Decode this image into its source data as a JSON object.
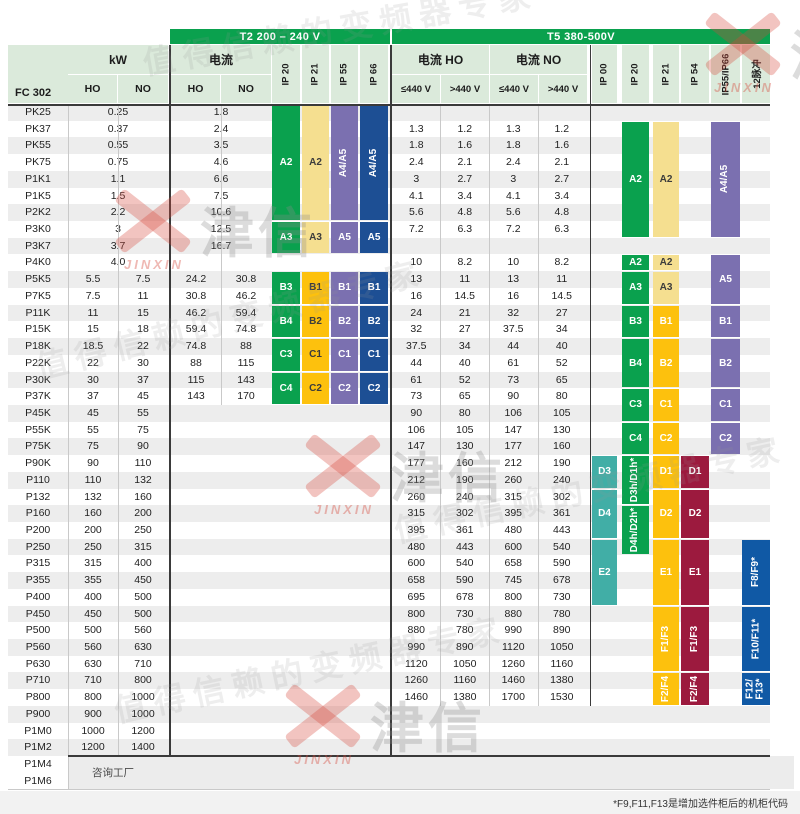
{
  "bars": {
    "t2": "T2 200 – 240 V",
    "t5": "T5 380-500V"
  },
  "header": {
    "model": "FC 302",
    "kw": {
      "label": "kW",
      "sub": [
        "HO",
        "NO"
      ]
    },
    "t2_current": {
      "label": "电流",
      "sub": [
        "HO",
        "NO"
      ]
    },
    "t2_ip": [
      "IP 20",
      "IP 21",
      "IP 55",
      "IP 66"
    ],
    "t5_current_ho": {
      "label": "电流 HO",
      "sub": [
        "≤440 V",
        ">440 V"
      ]
    },
    "t5_current_no": {
      "label": "电流 NO",
      "sub": [
        "≤440 V",
        ">440 V"
      ]
    },
    "t5_ip": [
      "IP 00",
      "IP 20",
      "IP 21",
      "IP 54",
      "IP55/IP66",
      "12脉冲"
    ]
  },
  "rows": [
    {
      "m": "PK25",
      "k": [
        "0.25"
      ],
      "c": [
        "1.8"
      ],
      "t": []
    },
    {
      "m": "PK37",
      "k": [
        "0.37"
      ],
      "c": [
        "2.4"
      ],
      "t": [
        "1.3",
        "1.2",
        "1.3",
        "1.2"
      ]
    },
    {
      "m": "PK55",
      "k": [
        "0.55"
      ],
      "c": [
        "3.5"
      ],
      "t": [
        "1.8",
        "1.6",
        "1.8",
        "1.6"
      ]
    },
    {
      "m": "PK75",
      "k": [
        "0.75"
      ],
      "c": [
        "4.6"
      ],
      "t": [
        "2.4",
        "2.1",
        "2.4",
        "2.1"
      ]
    },
    {
      "m": "P1K1",
      "k": [
        "1.1"
      ],
      "c": [
        "6.6"
      ],
      "t": [
        "3",
        "2.7",
        "3",
        "2.7"
      ]
    },
    {
      "m": "P1K5",
      "k": [
        "1.5"
      ],
      "c": [
        "7.5"
      ],
      "t": [
        "4.1",
        "3.4",
        "4.1",
        "3.4"
      ]
    },
    {
      "m": "P2K2",
      "k": [
        "2.2"
      ],
      "c": [
        "10.6"
      ],
      "t": [
        "5.6",
        "4.8",
        "5.6",
        "4.8"
      ]
    },
    {
      "m": "P3K0",
      "k": [
        "3"
      ],
      "c": [
        "12.5"
      ],
      "t": [
        "7.2",
        "6.3",
        "7.2",
        "6.3"
      ]
    },
    {
      "m": "P3K7",
      "k": [
        "3.7"
      ],
      "c": [
        "16.7"
      ],
      "t": []
    },
    {
      "m": "P4K0",
      "k": [
        "4.0"
      ],
      "c": [],
      "t": [
        "10",
        "8.2",
        "10",
        "8.2"
      ]
    },
    {
      "m": "P5K5",
      "k": [
        "5.5",
        "7.5"
      ],
      "c": [
        "24.2",
        "30.8"
      ],
      "t": [
        "13",
        "11",
        "13",
        "11"
      ]
    },
    {
      "m": "P7K5",
      "k": [
        "7.5",
        "11"
      ],
      "c": [
        "30.8",
        "46.2"
      ],
      "t": [
        "16",
        "14.5",
        "16",
        "14.5"
      ]
    },
    {
      "m": "P11K",
      "k": [
        "11",
        "15"
      ],
      "c": [
        "46.2",
        "59.4"
      ],
      "t": [
        "24",
        "21",
        "32",
        "27"
      ]
    },
    {
      "m": "P15K",
      "k": [
        "15",
        "18"
      ],
      "c": [
        "59.4",
        "74.8"
      ],
      "t": [
        "32",
        "27",
        "37.5",
        "34"
      ]
    },
    {
      "m": "P18K",
      "k": [
        "18.5",
        "22"
      ],
      "c": [
        "74.8",
        "88"
      ],
      "t": [
        "37.5",
        "34",
        "44",
        "40"
      ]
    },
    {
      "m": "P22K",
      "k": [
        "22",
        "30"
      ],
      "c": [
        "88",
        "115"
      ],
      "t": [
        "44",
        "40",
        "61",
        "52"
      ]
    },
    {
      "m": "P30K",
      "k": [
        "30",
        "37"
      ],
      "c": [
        "115",
        "143"
      ],
      "t": [
        "61",
        "52",
        "73",
        "65"
      ]
    },
    {
      "m": "P37K",
      "k": [
        "37",
        "45"
      ],
      "c": [
        "143",
        "170"
      ],
      "t": [
        "73",
        "65",
        "90",
        "80"
      ]
    },
    {
      "m": "P45K",
      "k": [
        "45",
        "55"
      ],
      "c": [],
      "t": [
        "90",
        "80",
        "106",
        "105"
      ]
    },
    {
      "m": "P55K",
      "k": [
        "55",
        "75"
      ],
      "c": [],
      "t": [
        "106",
        "105",
        "147",
        "130"
      ]
    },
    {
      "m": "P75K",
      "k": [
        "75",
        "90"
      ],
      "c": [],
      "t": [
        "147",
        "130",
        "177",
        "160"
      ]
    },
    {
      "m": "P90K",
      "k": [
        "90",
        "110"
      ],
      "c": [],
      "t": [
        "177",
        "160",
        "212",
        "190"
      ]
    },
    {
      "m": "P110",
      "k": [
        "110",
        "132"
      ],
      "c": [],
      "t": [
        "212",
        "190",
        "260",
        "240"
      ]
    },
    {
      "m": "P132",
      "k": [
        "132",
        "160"
      ],
      "c": [],
      "t": [
        "260",
        "240",
        "315",
        "302"
      ]
    },
    {
      "m": "P160",
      "k": [
        "160",
        "200"
      ],
      "c": [],
      "t": [
        "315",
        "302",
        "395",
        "361"
      ]
    },
    {
      "m": "P200",
      "k": [
        "200",
        "250"
      ],
      "c": [],
      "t": [
        "395",
        "361",
        "480",
        "443"
      ]
    },
    {
      "m": "P250",
      "k": [
        "250",
        "315"
      ],
      "c": [],
      "t": [
        "480",
        "443",
        "600",
        "540"
      ]
    },
    {
      "m": "P315",
      "k": [
        "315",
        "400"
      ],
      "c": [],
      "t": [
        "600",
        "540",
        "658",
        "590"
      ]
    },
    {
      "m": "P355",
      "k": [
        "355",
        "450"
      ],
      "c": [],
      "t": [
        "658",
        "590",
        "745",
        "678"
      ]
    },
    {
      "m": "P400",
      "k": [
        "400",
        "500"
      ],
      "c": [],
      "t": [
        "695",
        "678",
        "800",
        "730"
      ]
    },
    {
      "m": "P450",
      "k": [
        "450",
        "500"
      ],
      "c": [],
      "t": [
        "800",
        "730",
        "880",
        "780"
      ]
    },
    {
      "m": "P500",
      "k": [
        "500",
        "560"
      ],
      "c": [],
      "t": [
        "880",
        "780",
        "990",
        "890"
      ]
    },
    {
      "m": "P560",
      "k": [
        "560",
        "630"
      ],
      "c": [],
      "t": [
        "990",
        "890",
        "1120",
        "1050"
      ]
    },
    {
      "m": "P630",
      "k": [
        "630",
        "710"
      ],
      "c": [],
      "t": [
        "1120",
        "1050",
        "1260",
        "1160"
      ]
    },
    {
      "m": "P710",
      "k": [
        "710",
        "800"
      ],
      "c": [],
      "t": [
        "1260",
        "1160",
        "1460",
        "1380"
      ]
    },
    {
      "m": "P800",
      "k": [
        "800",
        "1000"
      ],
      "c": [],
      "t": [
        "1460",
        "1380",
        "1700",
        "1530"
      ]
    },
    {
      "m": "P900",
      "k": [
        "900",
        "1000"
      ],
      "c": [],
      "t": []
    },
    {
      "m": "P1M0",
      "k": [
        "1000",
        "1200"
      ],
      "c": [],
      "t": []
    },
    {
      "m": "P1M2",
      "k": [
        "1200",
        "1400"
      ],
      "c": [],
      "t": []
    },
    {
      "m": "P1M4",
      "k": [],
      "c": [],
      "t": []
    },
    {
      "m": "P1M6",
      "k": [],
      "c": [],
      "t": []
    }
  ],
  "blocks": [
    {
      "col": "t2ip20",
      "from": 0,
      "to": 6,
      "label": "A2",
      "color": "green"
    },
    {
      "col": "t2ip20",
      "from": 7,
      "to": 8,
      "label": "A3",
      "color": "green"
    },
    {
      "col": "t2ip20",
      "from": 10,
      "to": 11,
      "label": "B3",
      "color": "green"
    },
    {
      "col": "t2ip20",
      "from": 12,
      "to": 13,
      "label": "B4",
      "color": "green"
    },
    {
      "col": "t2ip20",
      "from": 14,
      "to": 15,
      "label": "C3",
      "color": "green"
    },
    {
      "col": "t2ip20",
      "from": 16,
      "to": 17,
      "label": "C4",
      "color": "green"
    },
    {
      "col": "t2ip21",
      "from": 0,
      "to": 6,
      "label": "A2",
      "color": "pale",
      "dark": true
    },
    {
      "col": "t2ip21",
      "from": 7,
      "to": 8,
      "label": "A3",
      "color": "pale",
      "dark": true
    },
    {
      "col": "t2ip21",
      "from": 10,
      "to": 11,
      "label": "B1",
      "color": "gold",
      "dark": true
    },
    {
      "col": "t2ip21",
      "from": 12,
      "to": 13,
      "label": "B2",
      "color": "gold",
      "dark": true
    },
    {
      "col": "t2ip21",
      "from": 14,
      "to": 15,
      "label": "C1",
      "color": "gold",
      "dark": true
    },
    {
      "col": "t2ip21",
      "from": 16,
      "to": 17,
      "label": "C2",
      "color": "gold",
      "dark": true
    },
    {
      "col": "t2ip55",
      "from": 0,
      "to": 6,
      "label": "A4/A5",
      "color": "purple",
      "v": true
    },
    {
      "col": "t2ip55",
      "from": 7,
      "to": 8,
      "label": "A5",
      "color": "purple"
    },
    {
      "col": "t2ip55",
      "from": 10,
      "to": 11,
      "label": "B1",
      "color": "purple"
    },
    {
      "col": "t2ip55",
      "from": 12,
      "to": 13,
      "label": "B2",
      "color": "purple"
    },
    {
      "col": "t2ip55",
      "from": 14,
      "to": 15,
      "label": "C1",
      "color": "purple"
    },
    {
      "col": "t2ip55",
      "from": 16,
      "to": 17,
      "label": "C2",
      "color": "purple"
    },
    {
      "col": "t2ip66",
      "from": 0,
      "to": 6,
      "label": "A4/A5",
      "color": "navy",
      "v": true
    },
    {
      "col": "t2ip66",
      "from": 7,
      "to": 8,
      "label": "A5",
      "color": "navy"
    },
    {
      "col": "t2ip66",
      "from": 10,
      "to": 11,
      "label": "B1",
      "color": "navy"
    },
    {
      "col": "t2ip66",
      "from": 12,
      "to": 13,
      "label": "B2",
      "color": "navy"
    },
    {
      "col": "t2ip66",
      "from": 14,
      "to": 15,
      "label": "C1",
      "color": "navy"
    },
    {
      "col": "t2ip66",
      "from": 16,
      "to": 17,
      "label": "C2",
      "color": "navy"
    },
    {
      "col": "t5ip00",
      "from": 21,
      "to": 22,
      "label": "D3",
      "color": "teal"
    },
    {
      "col": "t5ip00",
      "from": 23,
      "to": 25,
      "label": "D4",
      "color": "teal"
    },
    {
      "col": "t5ip00",
      "from": 26,
      "to": 29,
      "label": "E2",
      "color": "teal"
    },
    {
      "col": "t5ip20",
      "from": 1,
      "to": 7,
      "label": "A2",
      "color": "green"
    },
    {
      "col": "t5ip20",
      "from": 9,
      "to": 9,
      "label": "A2",
      "color": "green"
    },
    {
      "col": "t5ip20",
      "from": 10,
      "to": 11,
      "label": "A3",
      "color": "green"
    },
    {
      "col": "t5ip20",
      "from": 12,
      "to": 13,
      "label": "B3",
      "color": "green"
    },
    {
      "col": "t5ip20",
      "from": 14,
      "to": 16,
      "label": "B4",
      "color": "green"
    },
    {
      "col": "t5ip20",
      "from": 17,
      "to": 18,
      "label": "C3",
      "color": "green"
    },
    {
      "col": "t5ip20",
      "from": 19,
      "to": 20,
      "label": "C4",
      "color": "green"
    },
    {
      "col": "t5ip20",
      "from": 21,
      "to": 23,
      "label": "D3h/D1h*",
      "color": "green",
      "v": true
    },
    {
      "col": "t5ip20",
      "from": 24,
      "to": 26,
      "label": "D4h/D2h*",
      "color": "green",
      "v": true
    },
    {
      "col": "t5ip21",
      "from": 1,
      "to": 7,
      "label": "A2",
      "color": "pale",
      "dark": true
    },
    {
      "col": "t5ip21",
      "from": 9,
      "to": 9,
      "label": "A2",
      "color": "pale",
      "dark": true
    },
    {
      "col": "t5ip21",
      "from": 10,
      "to": 11,
      "label": "A3",
      "color": "pale",
      "dark": true
    },
    {
      "col": "t5ip21",
      "from": 12,
      "to": 13,
      "label": "B1",
      "color": "gold"
    },
    {
      "col": "t5ip21",
      "from": 14,
      "to": 16,
      "label": "B2",
      "color": "gold"
    },
    {
      "col": "t5ip21",
      "from": 17,
      "to": 18,
      "label": "C1",
      "color": "gold"
    },
    {
      "col": "t5ip21",
      "from": 19,
      "to": 20,
      "label": "C2",
      "color": "gold"
    },
    {
      "col": "t5ip21",
      "from": 21,
      "to": 22,
      "label": "D1",
      "color": "gold"
    },
    {
      "col": "t5ip21",
      "from": 23,
      "to": 25,
      "label": "D2",
      "color": "gold"
    },
    {
      "col": "t5ip21",
      "from": 26,
      "to": 29,
      "label": "E1",
      "color": "gold"
    },
    {
      "col": "t5ip21",
      "from": 30,
      "to": 33,
      "label": "F1/F3",
      "color": "gold",
      "v": true
    },
    {
      "col": "t5ip21",
      "from": 34,
      "to": 35,
      "label": "F2/F4",
      "color": "gold",
      "v": true
    },
    {
      "col": "t5ip54",
      "from": 21,
      "to": 22,
      "label": "D1",
      "color": "maroon"
    },
    {
      "col": "t5ip54",
      "from": 23,
      "to": 25,
      "label": "D2",
      "color": "maroon"
    },
    {
      "col": "t5ip54",
      "from": 26,
      "to": 29,
      "label": "E1",
      "color": "maroon"
    },
    {
      "col": "t5ip54",
      "from": 30,
      "to": 33,
      "label": "F1/F3",
      "color": "maroon",
      "v": true
    },
    {
      "col": "t5ip54",
      "from": 34,
      "to": 35,
      "label": "F2/F4",
      "color": "maroon",
      "v": true
    },
    {
      "col": "t5ip5566",
      "from": 1,
      "to": 7,
      "label": "A4/A5",
      "color": "purple",
      "v": true
    },
    {
      "col": "t5ip5566",
      "from": 9,
      "to": 11,
      "label": "A5",
      "color": "purple"
    },
    {
      "col": "t5ip5566",
      "from": 12,
      "to": 13,
      "label": "B1",
      "color": "purple"
    },
    {
      "col": "t5ip5566",
      "from": 14,
      "to": 16,
      "label": "B2",
      "color": "purple"
    },
    {
      "col": "t5ip5566",
      "from": 17,
      "to": 18,
      "label": "C1",
      "color": "purple"
    },
    {
      "col": "t5ip5566",
      "from": 19,
      "to": 20,
      "label": "C2",
      "color": "purple"
    },
    {
      "col": "t5p12",
      "from": 26,
      "to": 29,
      "label": "F8/F9*",
      "color": "blue",
      "v": true
    },
    {
      "col": "t5p12",
      "from": 30,
      "to": 33,
      "label": "F10/F11*",
      "color": "blue",
      "v": true
    },
    {
      "col": "t5p12",
      "from": 34,
      "to": 35,
      "label": "F12/\nF13*",
      "color": "blue",
      "v": true
    }
  ],
  "colors": {
    "green": "#0aa14e",
    "pale": "#f5df90",
    "gold": "#fdc10d",
    "purple": "#7b70b0",
    "navy": "#1d4f94",
    "teal": "#41aea6",
    "maroon": "#9c1a3e",
    "blue": "#1059a5",
    "header_bg": "#dbeadb",
    "stripe": "#ededed"
  },
  "consult_label": "咨询工厂",
  "footnote": "*F9,F11,F13是增加选件柜后的机柜代码",
  "watermark": {
    "logo_text": "津信",
    "brand": "JINXIN",
    "slogan": "值得信赖的变频器专家"
  }
}
